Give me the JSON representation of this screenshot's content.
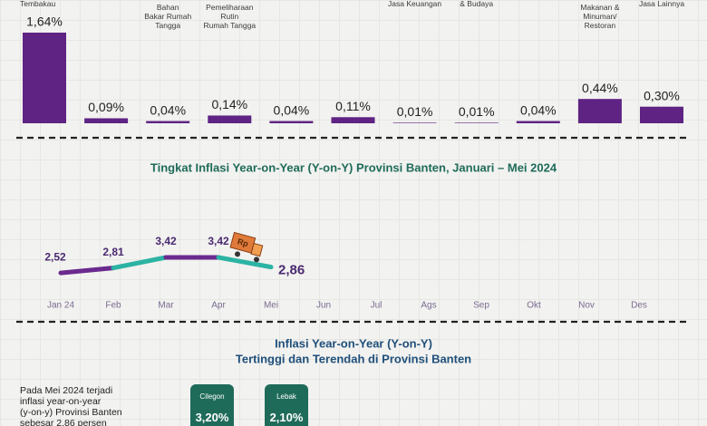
{
  "chart_data": [
    {
      "type": "bar",
      "categories": [
        "Tembakau",
        null,
        "Bahan\nBakar Rumah\nTangga",
        "Pemeliharaan\nRutin\nRumah Tangga",
        null,
        null,
        "Jasa Keuangan",
        "& Budaya",
        null,
        "Makanan &\nMinuman/\nRestoran",
        "Jasa Lainnya"
      ],
      "values": [
        1.64,
        0.09,
        0.04,
        0.14,
        0.04,
        0.11,
        0.01,
        0.01,
        0.04,
        0.44,
        0.3
      ],
      "value_labels": [
        "1,64%",
        "0,09%",
        "0,04%",
        "0,14%",
        "0,04%",
        "0,11%",
        "0,01%",
        "0,01%",
        "0,04%",
        "0,44%",
        "0,30%"
      ],
      "color": "#5e2383"
    },
    {
      "type": "line",
      "title": "Tingkat Inflasi Year-on-Year (Y-on-Y) Provinsi Banten, Januari – Mei  2024",
      "categories": [
        "Jan 24",
        "Feb",
        "Mar",
        "Apr",
        "Mei",
        "Jun",
        "Jul",
        "Ags",
        "Sep",
        "Okt",
        "Nov",
        "Des"
      ],
      "values": [
        2.52,
        2.81,
        3.42,
        3.42,
        2.86,
        null,
        null,
        null,
        null,
        null,
        null,
        null
      ],
      "value_labels": [
        "2,52",
        "2,81",
        "3,42",
        "3,42",
        "2,86",
        null,
        null,
        null,
        null,
        null,
        null,
        null
      ],
      "colors": [
        "#6a2a8e",
        "#2bb3a3"
      ],
      "truck_label": "Rp"
    }
  ],
  "section": {
    "title_lines": [
      "Inflasi Year-on-Year (Y-on-Y)",
      "Tertinggi dan Terendah di Provinsi Banten"
    ],
    "description": [
      "Pada Mei 2024 terjadi",
      "inflasi year-on-year",
      "(y-on-y) Provinsi Banten",
      "sebesar 2,86 persen"
    ],
    "cards": [
      {
        "name": "Cilegon",
        "value": "3,20%"
      },
      {
        "name": "Lebak",
        "value": "2,10%"
      }
    ]
  }
}
